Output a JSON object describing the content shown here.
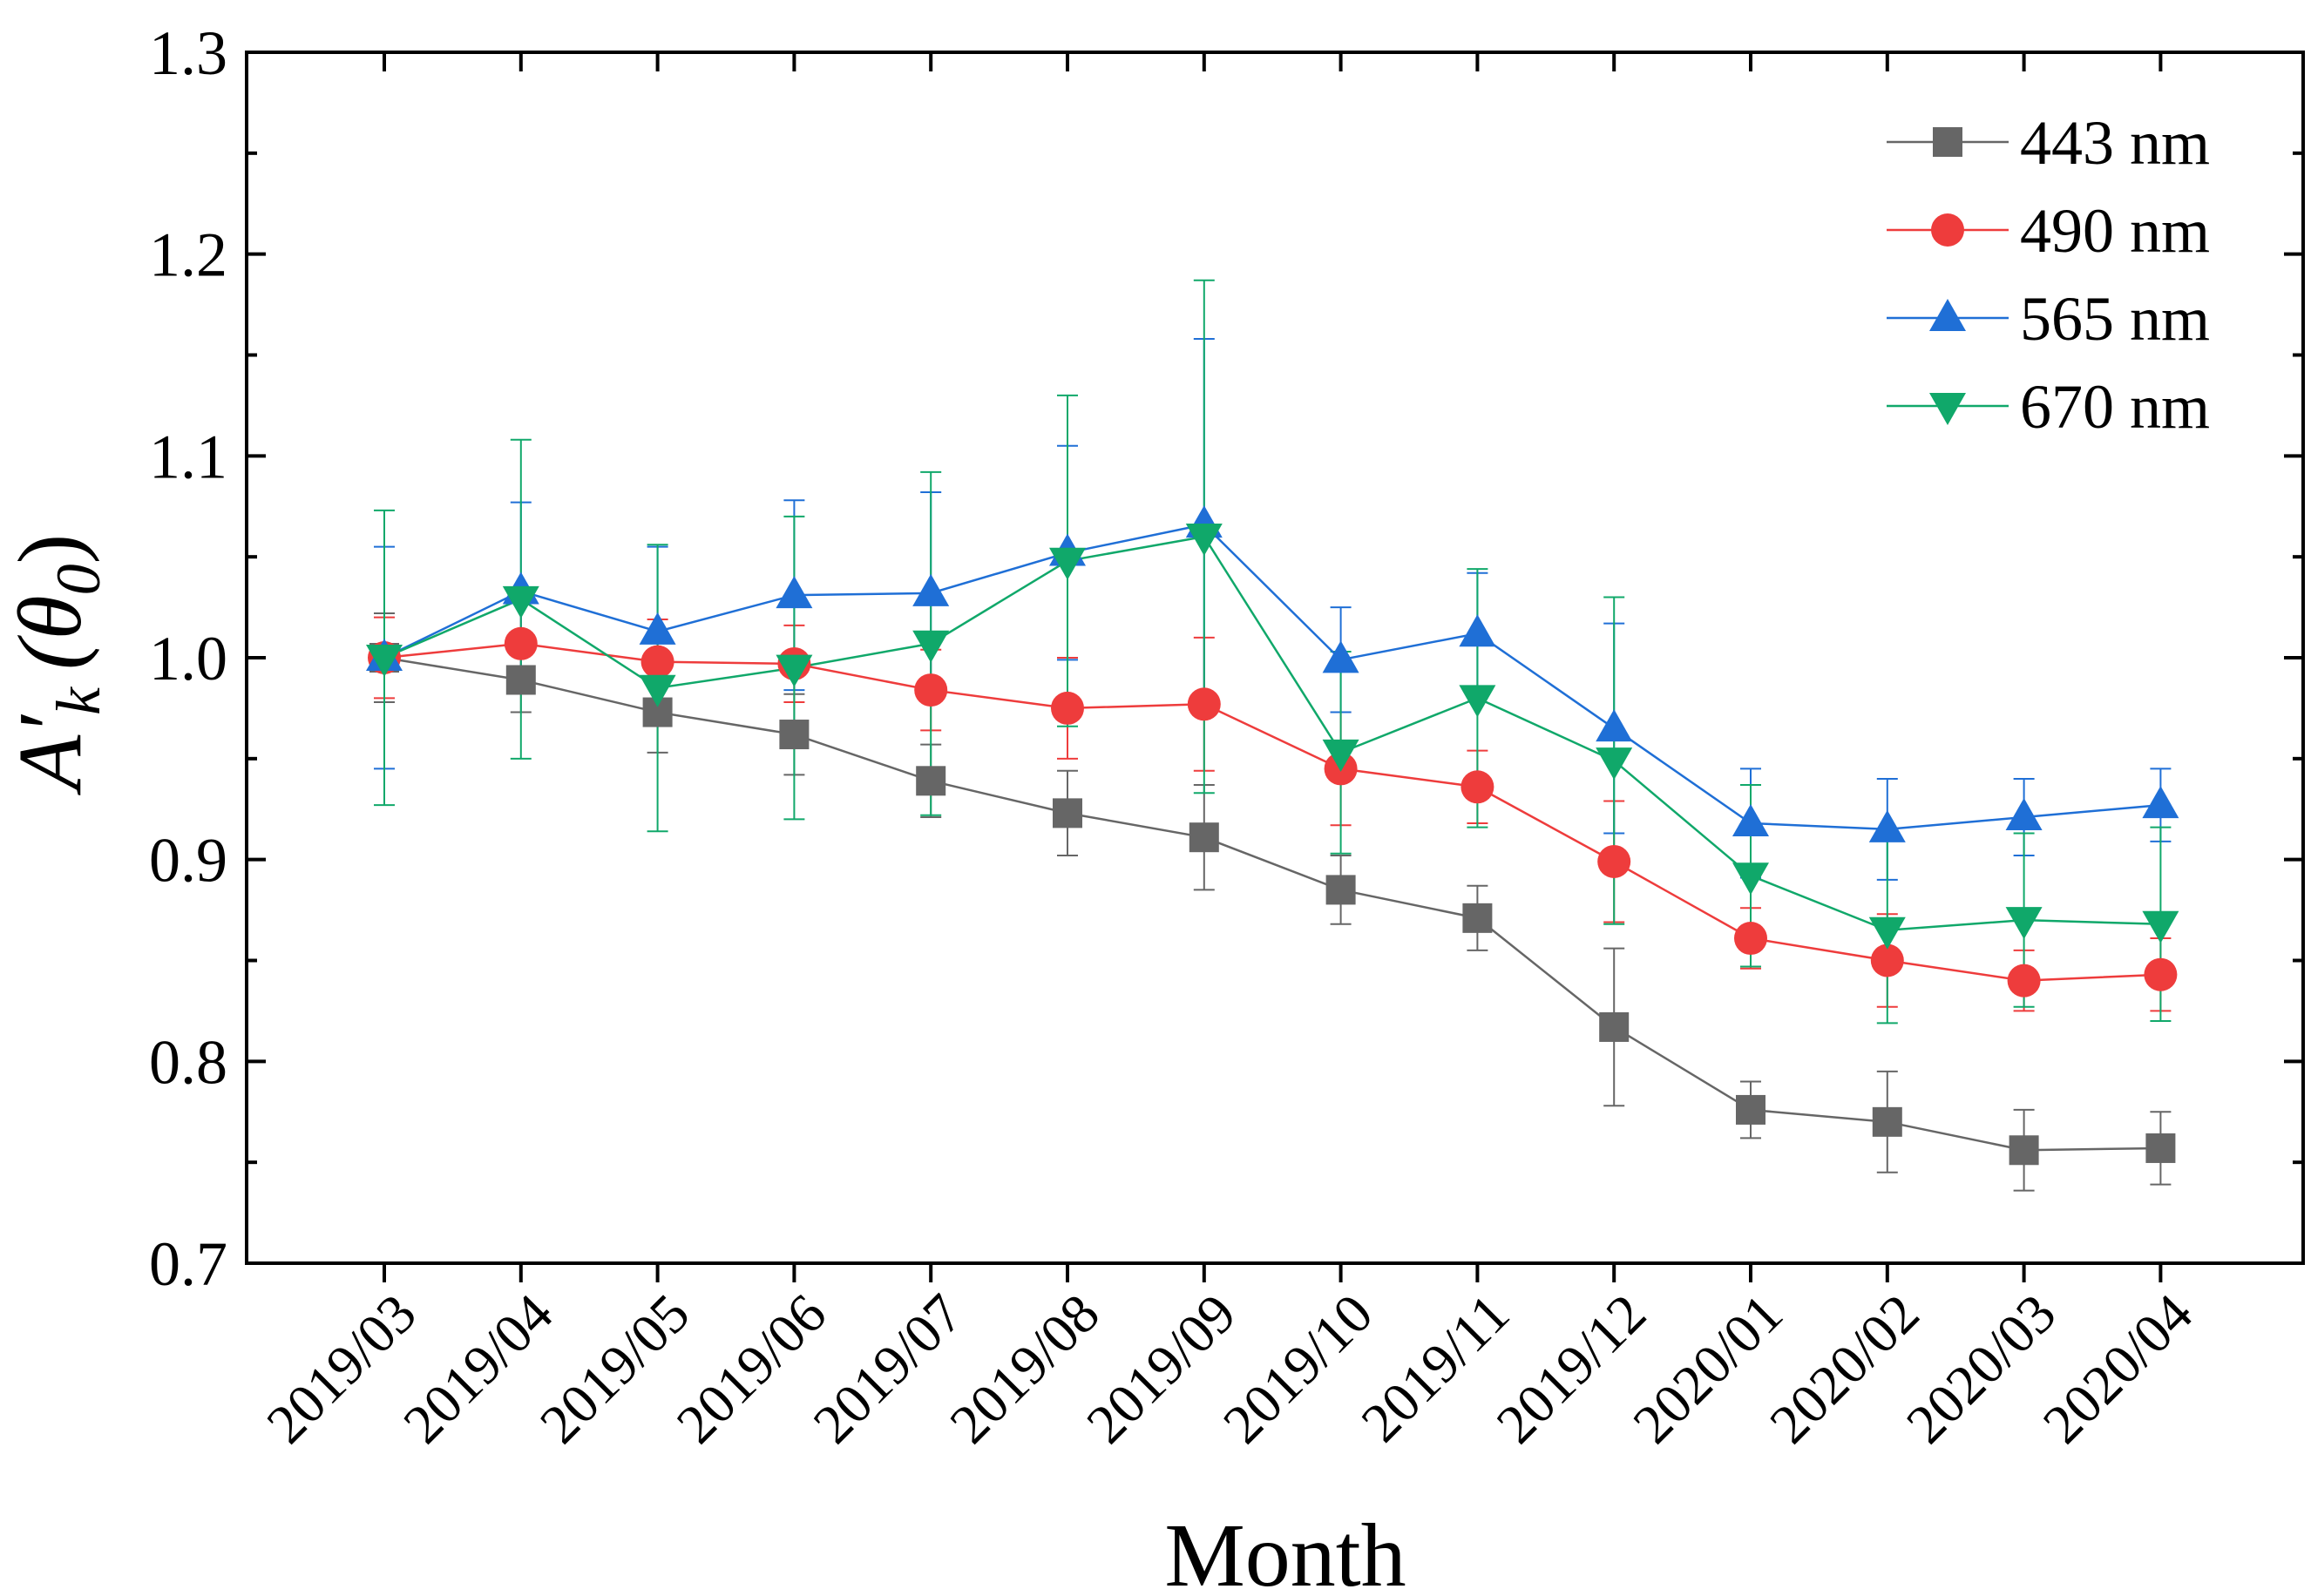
{
  "chart_data": {
    "type": "line",
    "title": "",
    "xlabel": "Month",
    "ylabel": {
      "base": "A′",
      "sub1": "k",
      "paren_open": "(θ",
      "sub2": "0",
      "paren_close": ")"
    },
    "ylim": [
      0.7,
      1.3
    ],
    "yticks": [
      "0.7",
      "0.8",
      "0.9",
      "1.0",
      "1.1",
      "1.2",
      "1.3"
    ],
    "categories": [
      "2019/03",
      "2019/04",
      "2019/05",
      "2019/06",
      "2019/07",
      "2019/08",
      "2019/09",
      "2019/10",
      "2019/11",
      "2019/12",
      "2020/01",
      "2020/02",
      "2020/03",
      "2020/04"
    ],
    "legend_position": "top-right",
    "series": [
      {
        "name": "443 nm",
        "color": "#666666",
        "marker": "square",
        "values": [
          1.0,
          0.989,
          0.973,
          0.962,
          0.939,
          0.923,
          0.911,
          0.885,
          0.871,
          0.817,
          0.776,
          0.77,
          0.756,
          0.757
        ],
        "errors": [
          0.022,
          0.016,
          0.02,
          0.02,
          0.018,
          0.021,
          0.026,
          0.017,
          0.016,
          0.039,
          0.014,
          0.025,
          0.02,
          0.018
        ]
      },
      {
        "name": "490 nm",
        "color": "#ee3c3c",
        "marker": "circle",
        "values": [
          1.0,
          1.007,
          0.998,
          0.997,
          0.984,
          0.975,
          0.977,
          0.945,
          0.936,
          0.899,
          0.861,
          0.85,
          0.84,
          0.843
        ],
        "errors": [
          0.02,
          0.021,
          0.021,
          0.019,
          0.02,
          0.025,
          0.033,
          0.028,
          0.018,
          0.03,
          0.015,
          0.023,
          0.015,
          0.018
        ]
      },
      {
        "name": "565 nm",
        "color": "#1f6fd6",
        "marker": "triangle-up",
        "values": [
          1.0,
          1.033,
          1.013,
          1.031,
          1.032,
          1.052,
          1.066,
          0.999,
          1.012,
          0.965,
          0.918,
          0.915,
          0.921,
          0.927
        ],
        "errors": [
          0.055,
          0.044,
          0.042,
          0.047,
          0.05,
          0.053,
          0.092,
          0.026,
          0.03,
          0.052,
          0.027,
          0.025,
          0.019,
          0.018
        ]
      },
      {
        "name": "670 nm",
        "color": "#10a86a",
        "marker": "triangle-down",
        "values": [
          1.0,
          1.029,
          0.985,
          0.995,
          1.007,
          1.048,
          1.06,
          0.953,
          0.98,
          0.949,
          0.892,
          0.865,
          0.87,
          0.868
        ],
        "errors": [
          0.073,
          0.079,
          0.071,
          0.075,
          0.085,
          0.082,
          0.127,
          0.05,
          0.064,
          0.081,
          0.045,
          0.046,
          0.043,
          0.048
        ]
      }
    ]
  }
}
